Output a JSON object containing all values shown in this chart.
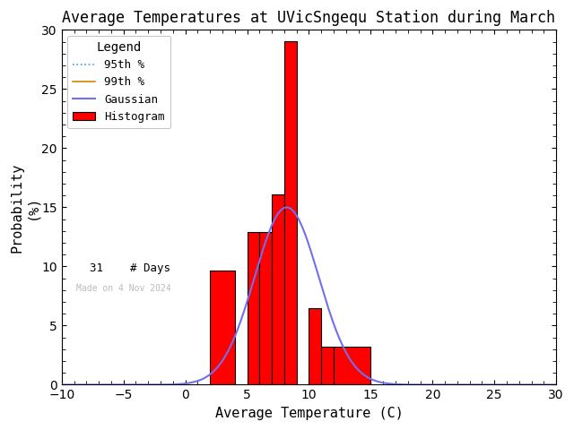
{
  "title": "Average Temperatures at UVicSngequ Station during March",
  "xlabel": "Average Temperature (C)",
  "ylabel": "Probability\n(%)",
  "xlim": [
    -10,
    30
  ],
  "ylim": [
    0,
    30
  ],
  "xticks": [
    -10,
    -5,
    0,
    5,
    10,
    15,
    20,
    25,
    30
  ],
  "yticks": [
    0,
    5,
    10,
    15,
    20,
    25,
    30
  ],
  "bin_edges": [
    2,
    4,
    5,
    6,
    7,
    8,
    9,
    10,
    11,
    12,
    15
  ],
  "bin_heights": [
    9.68,
    0,
    12.9,
    12.9,
    16.13,
    29.03,
    0,
    6.45,
    3.23,
    3.23
  ],
  "bar_color": "#ff0000",
  "bar_edgecolor": "#000000",
  "gaussian_color": "#7070ee",
  "gaussian_mean": 8.2,
  "gaussian_std": 2.6,
  "gaussian_peak": 15.0,
  "percentile_95_color": "#4499ff",
  "percentile_99_color": "#cc8800",
  "n_days": 31,
  "watermark": "Made on 4 Nov 2024",
  "watermark_color": "#bbbbbb",
  "background_color": "#ffffff",
  "title_fontsize": 12,
  "axis_fontsize": 11,
  "tick_fontsize": 10,
  "legend_title": "Legend",
  "legend_fontsize": 9
}
